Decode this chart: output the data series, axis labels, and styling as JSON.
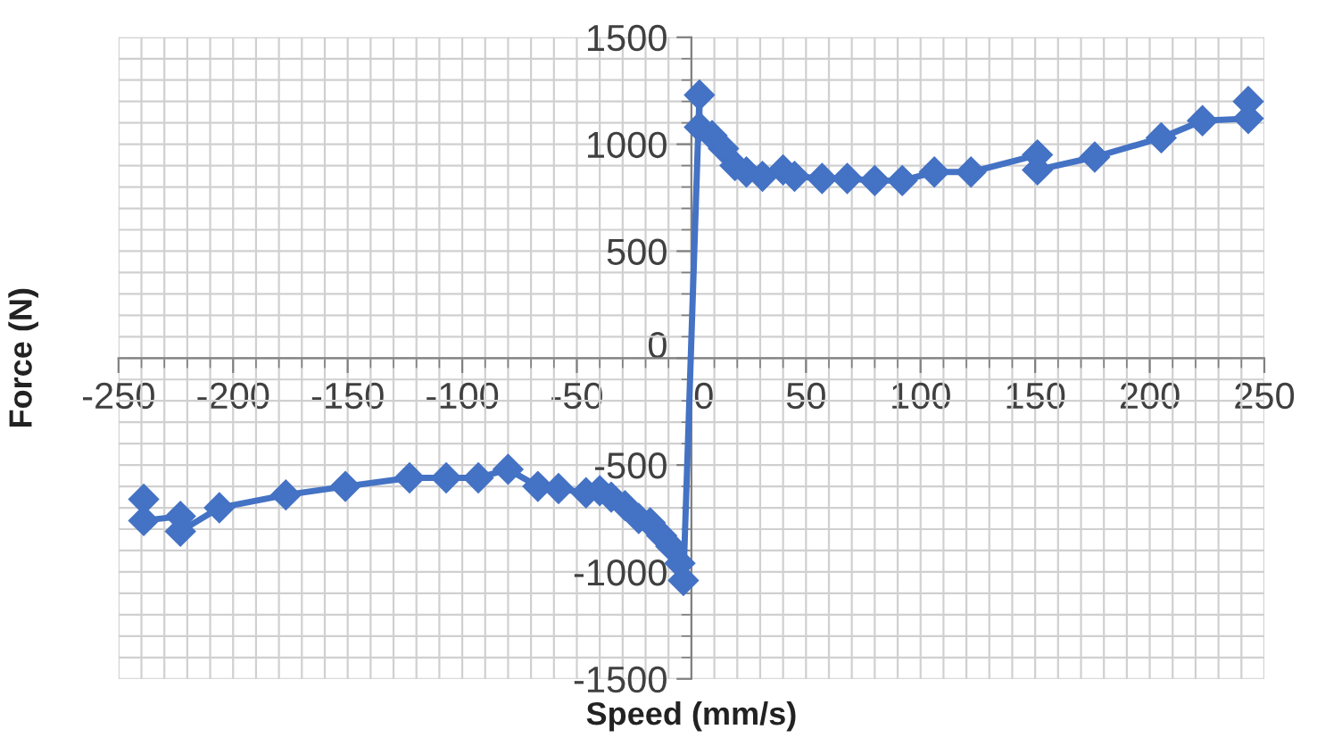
{
  "chart_data": {
    "type": "line",
    "xlabel": "Speed (mm/s)",
    "ylabel": "Force (N)",
    "x": [
      -239,
      -239,
      -223,
      -223,
      -206,
      -177,
      -151,
      -123,
      -107,
      -93,
      -80,
      -67,
      -58,
      -46,
      -40,
      -35,
      -29,
      -23,
      -18,
      -13,
      -9,
      -5,
      -3.5,
      3.5,
      3.5,
      9,
      14,
      19,
      24,
      31,
      40,
      45,
      57,
      68,
      80,
      92,
      106,
      122,
      151,
      151,
      176,
      205,
      223,
      243,
      243
    ],
    "series": [
      {
        "color": "#4472c4",
        "values": [
          -660,
          -760,
          -740,
          -810,
          -700,
          -640,
          -600,
          -560,
          -560,
          -560,
          -520,
          -600,
          -610,
          -630,
          -620,
          -650,
          -690,
          -750,
          -770,
          -830,
          -880,
          -960,
          -1040,
          1230,
          1080,
          1040,
          980,
          900,
          870,
          850,
          880,
          850,
          840,
          840,
          830,
          830,
          870,
          870,
          950,
          880,
          940,
          1030,
          1110,
          1120,
          1200
        ]
      }
    ],
    "xlim": [
      -250,
      250
    ],
    "ylim": [
      -1500,
      1500
    ],
    "xticks": [
      {
        "value": -250,
        "label": "-250"
      },
      {
        "value": -200,
        "label": "-200"
      },
      {
        "value": -150,
        "label": "-150"
      },
      {
        "value": -100,
        "label": "-100"
      },
      {
        "value": -50,
        "label": "-50"
      },
      0,
      50,
      100,
      150,
      200,
      250
    ],
    "yticks": [
      {
        "value": -1500,
        "label": "-1500"
      },
      {
        "value": -1000,
        "label": "-1000"
      },
      {
        "value": -500,
        "label": "-500"
      },
      0,
      500,
      1000,
      1500
    ],
    "grid": true,
    "marker": "diamond",
    "line_style": "solid"
  }
}
